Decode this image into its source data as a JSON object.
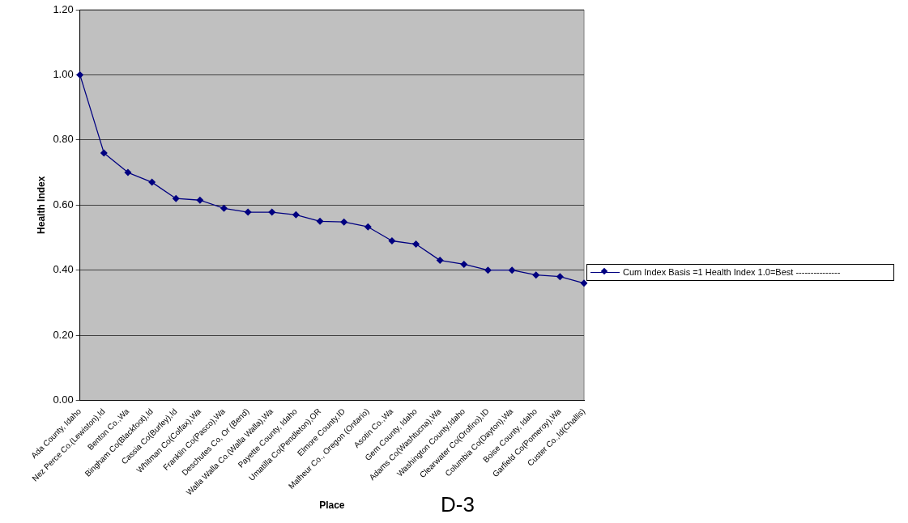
{
  "chart_data": {
    "type": "line",
    "xlabel": "Place",
    "ylabel": "Health Index",
    "annotations": [
      "D-3"
    ],
    "categories": [
      "Ada County, Idaho",
      "Nez Perce Co.(Lewiston),Id",
      "Benton Co.,Wa",
      "Bingham Co(Blackfoot),Id",
      "Cassia Co(Burley),Id",
      "Whitman Co(Colfax),Wa",
      "Franklin Co(Pasco),Wa",
      "Deschutes Co, Or (Bend)",
      "Walla Walla Co.(Walla Walla),Wa",
      "Payette County, Idaho",
      "Umatilla Co(Pendleton),OR",
      "Elmore County,ID",
      "Malheur Co., Oregon (Ontario)",
      "Asotin Co.,Wa",
      "Gem County, Idaho",
      "Adams Co(Washtucna),Wa",
      "Washington County,Idaho",
      "Clearwater Co(Orofino),ID",
      "Columbia Co(Dayton),Wa",
      "Boise County, Idaho",
      "Garfield Co(Pomeroy),Wa",
      "Custer Co.,Id(Challis)"
    ],
    "series": [
      {
        "name": "Cum Index Basis =1 Health Index 1.0=Best ---------------",
        "color": "#000080",
        "values": [
          1.0,
          0.76,
          0.7,
          0.67,
          0.62,
          0.615,
          0.59,
          0.578,
          0.578,
          0.57,
          0.55,
          0.548,
          0.533,
          0.49,
          0.48,
          0.43,
          0.418,
          0.4,
          0.4,
          0.385,
          0.38,
          0.36
        ]
      }
    ],
    "ylim": [
      0,
      1.2
    ],
    "yticks": [
      {
        "value": 0,
        "label": "0.00"
      },
      {
        "value": 0.2,
        "label": "0.20"
      },
      {
        "value": 0.4,
        "label": "0.40"
      },
      {
        "value": 0.6,
        "label": "0.60"
      },
      {
        "value": 0.8,
        "label": "0.80"
      },
      {
        "value": 1,
        "label": "1.00"
      },
      {
        "value": 1.2,
        "label": "1.20"
      }
    ],
    "grid": "y",
    "legend": "right",
    "marker": "diamond",
    "line_style": "solid"
  }
}
